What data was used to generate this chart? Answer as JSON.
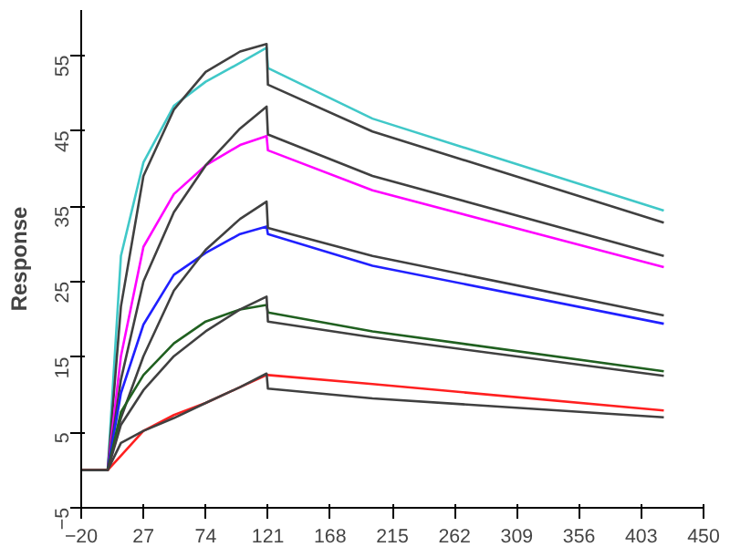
{
  "chart_data": {
    "type": "line",
    "ylabel": "Response",
    "x": [
      -20,
      0,
      10,
      27,
      50,
      74,
      100,
      120,
      121,
      200,
      420
    ],
    "series": [
      {
        "color": "#40c8c8",
        "values": [
          0,
          0,
          28.4,
          40.8,
          48.3,
          51.5,
          54,
          56,
          53.3,
          46.6,
          34.4
        ]
      },
      {
        "color": "#404040",
        "values": [
          0,
          0,
          21.7,
          39,
          47.8,
          52.8,
          55.5,
          56.5,
          51.1,
          44.9,
          32.8
        ]
      },
      {
        "color": "#ff00ff",
        "values": [
          0,
          0,
          15.1,
          29.6,
          36.6,
          40.4,
          43.1,
          44.3,
          42.4,
          37.1,
          26.9
        ]
      },
      {
        "color": "#404040",
        "values": [
          0,
          0,
          12,
          25,
          34.2,
          40.4,
          45.3,
          48.2,
          44.5,
          39,
          28.4
        ]
      },
      {
        "color": "#2020ff",
        "values": [
          0,
          0,
          10.2,
          19.3,
          25.9,
          28.8,
          31.3,
          32.3,
          31.3,
          27.1,
          19.4
        ]
      },
      {
        "color": "#404040",
        "values": [
          0,
          0,
          6.9,
          15.1,
          23.8,
          29.2,
          33.3,
          35.6,
          32.1,
          28.4,
          20.5
        ]
      },
      {
        "color": "#206020",
        "values": [
          0,
          0,
          7.7,
          12.6,
          16.8,
          19.7,
          21.3,
          21.9,
          20.9,
          18.4,
          13.1
        ]
      },
      {
        "color": "#404040",
        "values": [
          0,
          0,
          6,
          10.6,
          15.1,
          18.4,
          21.3,
          23,
          19.7,
          17.6,
          12.5
        ]
      },
      {
        "color": "#ff2020",
        "values": [
          0,
          0,
          1.9,
          5.2,
          7.3,
          8.9,
          11,
          12.6,
          12.6,
          11.4,
          7.9
        ]
      },
      {
        "color": "#404040",
        "values": [
          0,
          0,
          3.6,
          5.2,
          6.9,
          8.9,
          11,
          12.8,
          10.8,
          9.5,
          7
        ]
      }
    ],
    "xlim": [
      -20,
      450
    ],
    "ylim": [
      -5,
      61
    ],
    "xticks": [
      -20,
      27,
      74,
      121,
      168,
      215,
      262,
      309,
      356,
      403,
      450
    ],
    "yticks": [
      -5,
      5,
      15,
      25,
      35,
      45,
      55
    ],
    "grid": false,
    "marker": "none",
    "line_style": "solid"
  }
}
